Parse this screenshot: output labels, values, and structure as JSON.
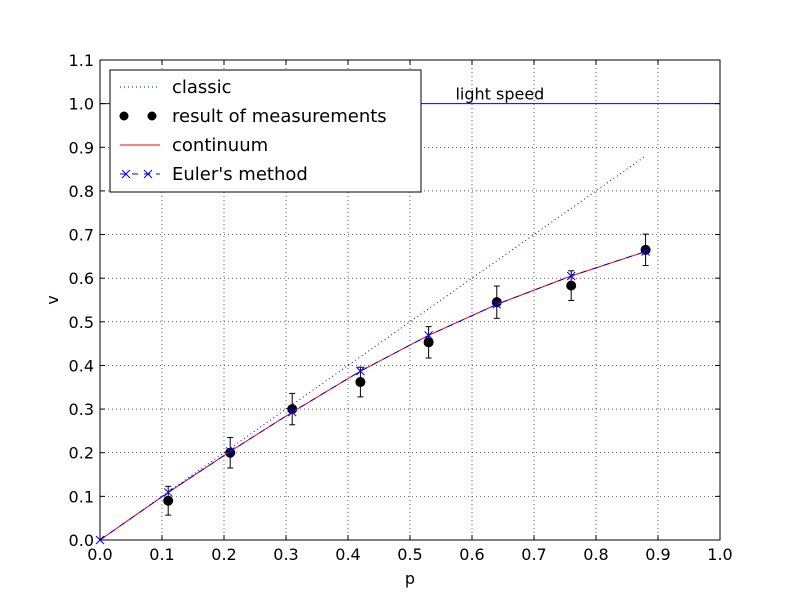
{
  "chart_data": {
    "type": "line",
    "xlabel": "p",
    "ylabel": "v",
    "xlim": [
      0.0,
      1.0
    ],
    "ylim": [
      0.0,
      1.1
    ],
    "xticks": [
      "0.0",
      "0.1",
      "0.2",
      "0.3",
      "0.4",
      "0.5",
      "0.6",
      "0.7",
      "0.8",
      "0.9",
      "1.0"
    ],
    "yticks": [
      "0.0",
      "0.1",
      "0.2",
      "0.3",
      "0.4",
      "0.5",
      "0.6",
      "0.7",
      "0.8",
      "0.9",
      "1.0",
      "1.1"
    ],
    "grid": true,
    "legend_position": "top-left",
    "annotation": {
      "text": "light speed",
      "x": 0.645,
      "y": 1.01
    },
    "series": [
      {
        "name": "classic",
        "style": "dotted",
        "color": "#0000ff",
        "x": [
          0.0,
          0.88
        ],
        "y": [
          0.0,
          0.88
        ]
      },
      {
        "name": "result of measurements",
        "style": "points-errorbars",
        "color": "#000000",
        "x": [
          0.11,
          0.21,
          0.31,
          0.42,
          0.53,
          0.64,
          0.76,
          0.88
        ],
        "y": [
          0.09,
          0.2,
          0.3,
          0.362,
          0.453,
          0.545,
          0.583,
          0.665
        ],
        "yerr": [
          0.033,
          0.035,
          0.036,
          0.034,
          0.036,
          0.037,
          0.034,
          0.036
        ]
      },
      {
        "name": "continuum",
        "style": "solid",
        "color": "#ff0000",
        "x": [
          0.0,
          0.11,
          0.21,
          0.31,
          0.42,
          0.53,
          0.64,
          0.76,
          0.88
        ],
        "y": [
          0.0,
          0.109,
          0.203,
          0.293,
          0.387,
          0.469,
          0.54,
          0.605,
          0.661
        ]
      },
      {
        "name": "Euler's method",
        "style": "dashed-x",
        "color": "#0000ff",
        "x": [
          0.0,
          0.11,
          0.21,
          0.31,
          0.42,
          0.53,
          0.64,
          0.76,
          0.88
        ],
        "y": [
          0.0,
          0.109,
          0.203,
          0.293,
          0.387,
          0.469,
          0.54,
          0.605,
          0.661
        ]
      },
      {
        "name": "",
        "style": "solid",
        "color": "#0000ff",
        "x": [
          0.0,
          1.0
        ],
        "y": [
          1.0,
          1.0
        ]
      }
    ]
  }
}
